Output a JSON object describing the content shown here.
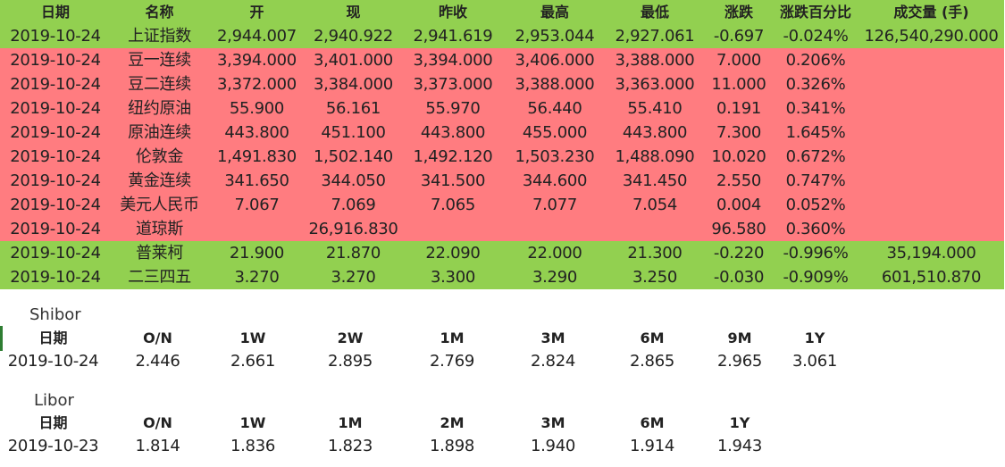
{
  "colors": {
    "up_row": "#ff7c80",
    "down_row": "#92d050",
    "header_bg": "#92d050",
    "text": "#222222"
  },
  "market": {
    "headers": [
      "日期",
      "名称",
      "开",
      "现",
      "昨收",
      "最高",
      "最低",
      "涨跌",
      "涨跌百分比",
      "成交量 (手)"
    ],
    "rows": [
      {
        "trend": "down",
        "cells": [
          "2019-10-24",
          "上证指数",
          "2,944.007",
          "2,940.922",
          "2,941.619",
          "2,953.044",
          "2,927.061",
          "-0.697",
          "-0.024%",
          "126,540,290.000"
        ]
      },
      {
        "trend": "up",
        "cells": [
          "2019-10-24",
          "豆一连续",
          "3,394.000",
          "3,401.000",
          "3,394.000",
          "3,406.000",
          "3,388.000",
          "7.000",
          "0.206%",
          ""
        ]
      },
      {
        "trend": "up",
        "cells": [
          "2019-10-24",
          "豆二连续",
          "3,372.000",
          "3,384.000",
          "3,373.000",
          "3,388.000",
          "3,363.000",
          "11.000",
          "0.326%",
          ""
        ]
      },
      {
        "trend": "up",
        "cells": [
          "2019-10-24",
          "纽约原油",
          "55.900",
          "56.161",
          "55.970",
          "56.440",
          "55.410",
          "0.191",
          "0.341%",
          ""
        ]
      },
      {
        "trend": "up",
        "cells": [
          "2019-10-24",
          "原油连续",
          "443.800",
          "451.100",
          "443.800",
          "455.000",
          "443.800",
          "7.300",
          "1.645%",
          ""
        ]
      },
      {
        "trend": "up",
        "cells": [
          "2019-10-24",
          "伦敦金",
          "1,491.830",
          "1,502.140",
          "1,492.120",
          "1,503.230",
          "1,488.090",
          "10.020",
          "0.672%",
          ""
        ]
      },
      {
        "trend": "up",
        "cells": [
          "2019-10-24",
          "黄金连续",
          "341.650",
          "344.050",
          "341.500",
          "344.600",
          "341.450",
          "2.550",
          "0.747%",
          ""
        ]
      },
      {
        "trend": "up",
        "cells": [
          "2019-10-24",
          "美元人民币",
          "7.067",
          "7.069",
          "7.065",
          "7.077",
          "7.054",
          "0.004",
          "0.052%",
          ""
        ]
      },
      {
        "trend": "up",
        "cells": [
          "2019-10-24",
          "道琼斯",
          "",
          "26,916.830",
          "",
          "",
          "",
          "96.580",
          "0.360%",
          ""
        ]
      },
      {
        "trend": "down",
        "cells": [
          "2019-10-24",
          "普莱柯",
          "21.900",
          "21.870",
          "22.090",
          "22.000",
          "21.300",
          "-0.220",
          "-0.996%",
          "35,194.000"
        ]
      },
      {
        "trend": "down",
        "cells": [
          "2019-10-24",
          "二三四五",
          "3.270",
          "3.270",
          "3.300",
          "3.290",
          "3.250",
          "-0.030",
          "-0.909%",
          "601,510.870"
        ]
      }
    ]
  },
  "shibor": {
    "title": "Shibor",
    "headers": [
      "日期",
      "O/N",
      "1W",
      "2W",
      "1M",
      "3M",
      "6M",
      "9M",
      "1Y"
    ],
    "values": [
      "2019-10-24",
      "2.446",
      "2.661",
      "2.895",
      "2.769",
      "2.824",
      "2.865",
      "2.965",
      "3.061"
    ]
  },
  "libor": {
    "title": "Libor",
    "headers": [
      "日期",
      "O/N",
      "1W",
      "1M",
      "2M",
      "3M",
      "6M",
      "1Y"
    ],
    "values": [
      "2019-10-23",
      "1.814",
      "1.836",
      "1.823",
      "1.898",
      "1.940",
      "1.914",
      "1.943"
    ]
  }
}
